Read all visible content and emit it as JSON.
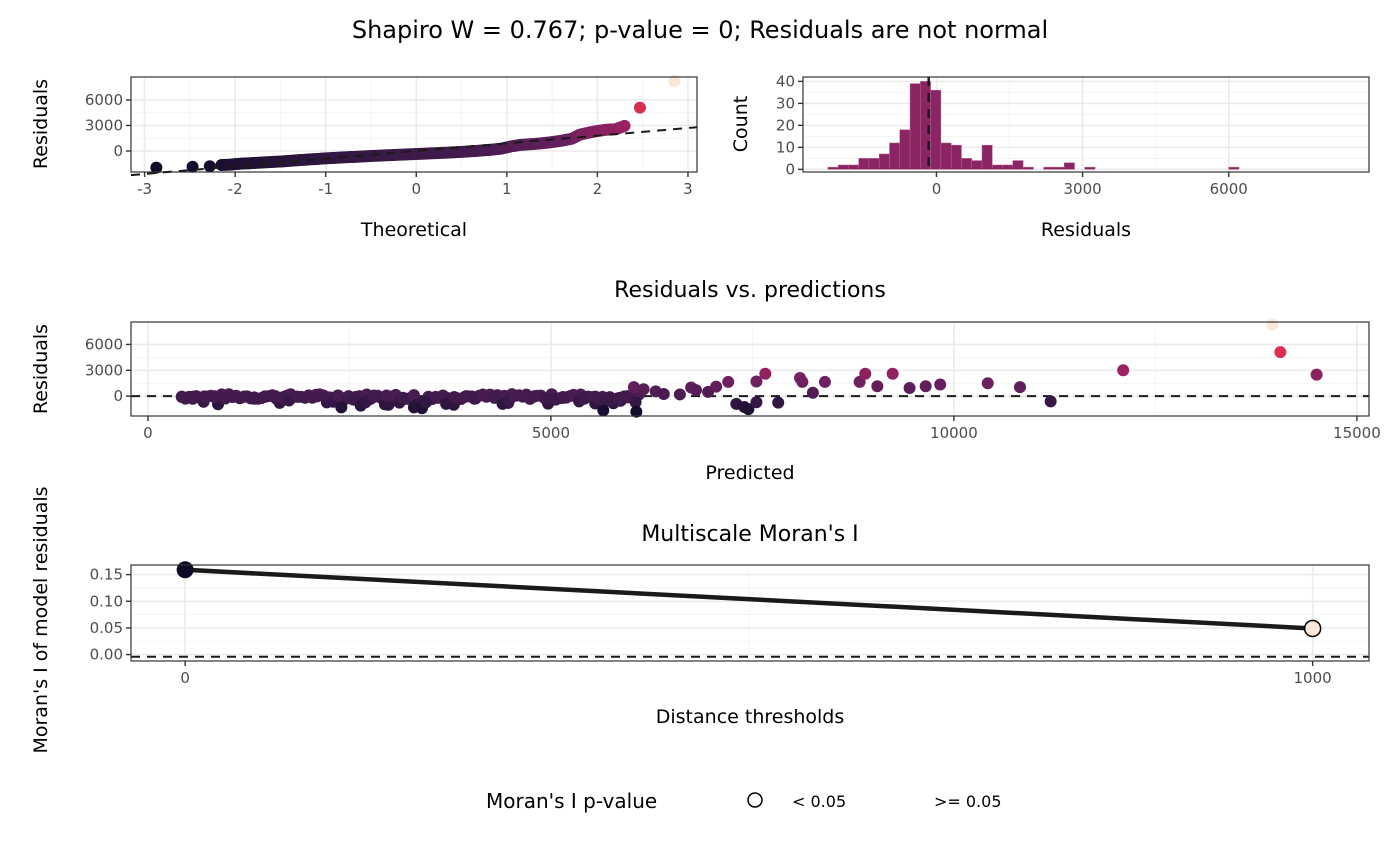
{
  "figure_title": "Shapiro W = 0.767; p-value = 0; Residuals are not normal",
  "colors": {
    "dark": "#0b0924",
    "purple": "#4a1f55",
    "magenta": "#8b2463",
    "crimson": "#cc1a56",
    "orange": "#f26a47",
    "peach": "#fbe8d8",
    "hist_fill": "#8b2463",
    "line": "#1a1a1a",
    "grid": "#ebebeb"
  },
  "chart_data": [
    {
      "id": "qq",
      "type": "scatter",
      "title": "",
      "xlabel": "Theoretical",
      "ylabel": "Residuals",
      "xlim": [
        -3.15,
        3.1
      ],
      "ylim": [
        -2470,
        8700
      ],
      "xticks": [
        "-3",
        "-2",
        "-1",
        "0",
        "1",
        "2",
        "3"
      ],
      "xtick_values": [
        -3,
        -2,
        -1,
        0,
        1,
        2,
        3
      ],
      "yticks": [
        "0",
        "3000",
        "6000"
      ],
      "ytick_values": [
        0,
        3000,
        6000
      ],
      "reference_line": {
        "slope": 900,
        "intercept": 0,
        "style": "dashed"
      },
      "grid": true,
      "points": [
        {
          "x": -2.87,
          "y": -1950
        },
        {
          "x": -2.47,
          "y": -1850
        },
        {
          "x": -2.28,
          "y": -1800
        },
        {
          "x": -2.15,
          "y": -1650
        },
        {
          "x": -2.05,
          "y": -1600
        },
        {
          "x": -1.95,
          "y": -1500
        },
        {
          "x": -1.85,
          "y": -1450
        },
        {
          "x": -1.75,
          "y": -1380
        },
        {
          "x": -1.6,
          "y": -1300
        },
        {
          "x": -1.45,
          "y": -1200
        },
        {
          "x": -1.3,
          "y": -1080
        },
        {
          "x": -1.15,
          "y": -970
        },
        {
          "x": -1.0,
          "y": -870
        },
        {
          "x": -0.85,
          "y": -780
        },
        {
          "x": -0.7,
          "y": -700
        },
        {
          "x": -0.55,
          "y": -620
        },
        {
          "x": -0.4,
          "y": -540
        },
        {
          "x": -0.25,
          "y": -470
        },
        {
          "x": -0.1,
          "y": -400
        },
        {
          "x": 0.05,
          "y": -330
        },
        {
          "x": 0.2,
          "y": -260
        },
        {
          "x": 0.35,
          "y": -190
        },
        {
          "x": 0.5,
          "y": -110
        },
        {
          "x": 0.65,
          "y": 0
        },
        {
          "x": 0.8,
          "y": 120
        },
        {
          "x": 0.95,
          "y": 300
        },
        {
          "x": 1.05,
          "y": 550
        },
        {
          "x": 1.15,
          "y": 720
        },
        {
          "x": 1.3,
          "y": 820
        },
        {
          "x": 1.45,
          "y": 980
        },
        {
          "x": 1.6,
          "y": 1200
        },
        {
          "x": 1.72,
          "y": 1450
        },
        {
          "x": 1.8,
          "y": 1900
        },
        {
          "x": 1.9,
          "y": 2150
        },
        {
          "x": 2.0,
          "y": 2350
        },
        {
          "x": 2.1,
          "y": 2500
        },
        {
          "x": 2.2,
          "y": 2550
        },
        {
          "x": 2.3,
          "y": 2950
        },
        {
          "x": 2.47,
          "y": 5100
        },
        {
          "x": 2.85,
          "y": 8250
        }
      ]
    },
    {
      "id": "hist",
      "type": "bar",
      "title": "",
      "xlabel": "Residuals",
      "ylabel": "Count",
      "xlim": [
        -2740,
        8880
      ],
      "ylim": [
        -1.2,
        42
      ],
      "xticks": [
        "0",
        "3000",
        "6000"
      ],
      "xtick_values": [
        0,
        3000,
        6000
      ],
      "yticks": [
        "0",
        "10",
        "20",
        "30",
        "40"
      ],
      "ytick_values": [
        0,
        10,
        20,
        30,
        40
      ],
      "bin_start": -2230,
      "bin_width": 211,
      "counts": [
        1,
        2,
        2,
        5,
        5,
        7,
        12,
        18,
        39,
        40,
        36,
        12,
        11,
        5,
        4,
        11,
        2,
        2,
        4,
        1,
        0,
        1,
        1,
        3,
        0,
        1,
        0,
        0,
        0,
        0,
        0,
        0,
        0,
        0,
        0,
        0,
        0,
        0,
        0,
        1,
        0,
        0,
        0,
        0,
        0,
        0,
        0,
        0,
        0,
        0,
        0,
        0,
        0,
        0,
        0,
        0,
        0,
        0,
        0,
        0,
        0,
        0,
        0,
        0,
        0,
        0,
        0,
        0,
        0,
        0,
        0,
        0,
        0,
        0,
        0,
        0,
        0,
        0,
        0,
        0,
        0,
        0,
        0,
        0,
        0,
        0,
        0,
        0,
        0,
        0,
        0,
        0,
        0,
        0,
        1
      ],
      "vline": {
        "x": -160,
        "style": "dashed"
      },
      "grid": true
    },
    {
      "id": "resid_pred",
      "type": "scatter",
      "title": "Residuals vs. predictions",
      "xlabel": "Predicted",
      "ylabel": "Residuals",
      "xlim": [
        -210,
        15150
      ],
      "ylim": [
        -2300,
        8600
      ],
      "xticks": [
        "0",
        "5000",
        "10000",
        "15000"
      ],
      "xtick_values": [
        0,
        5000,
        10000,
        15000
      ],
      "yticks": [
        "0",
        "3000",
        "6000"
      ],
      "ytick_values": [
        0,
        3000,
        6000
      ],
      "hline": {
        "y": 0,
        "style": "dashed"
      },
      "grid": true,
      "points": [
        {
          "x": 420,
          "y": -100
        },
        {
          "x": 560,
          "y": -50
        },
        {
          "x": 700,
          "y": -20
        },
        {
          "x": 820,
          "y": -80
        },
        {
          "x": 950,
          "y": -60
        },
        {
          "x": 1080,
          "y": 0
        },
        {
          "x": 1200,
          "y": -40
        },
        {
          "x": 1320,
          "y": -300
        },
        {
          "x": 1450,
          "y": -20
        },
        {
          "x": 1580,
          "y": 0
        },
        {
          "x": 1680,
          "y": -100
        },
        {
          "x": 1750,
          "y": -500
        },
        {
          "x": 1850,
          "y": -60
        },
        {
          "x": 1980,
          "y": -50
        },
        {
          "x": 2100,
          "y": -30
        },
        {
          "x": 2230,
          "y": -120
        },
        {
          "x": 2300,
          "y": -650
        },
        {
          "x": 2360,
          "y": 80
        },
        {
          "x": 2480,
          "y": -200
        },
        {
          "x": 2550,
          "y": -400
        },
        {
          "x": 2640,
          "y": -1100
        },
        {
          "x": 2700,
          "y": -700
        },
        {
          "x": 2800,
          "y": -100
        },
        {
          "x": 2960,
          "y": 80
        },
        {
          "x": 2400,
          "y": -1300
        },
        {
          "x": 3300,
          "y": -1300
        },
        {
          "x": 3400,
          "y": -1400
        },
        {
          "x": 3450,
          "y": -700
        },
        {
          "x": 3600,
          "y": -200
        },
        {
          "x": 3700,
          "y": -900
        },
        {
          "x": 3800,
          "y": -100
        },
        {
          "x": 3950,
          "y": 0
        },
        {
          "x": 4050,
          "y": -300
        },
        {
          "x": 4150,
          "y": 100
        },
        {
          "x": 4300,
          "y": -200
        },
        {
          "x": 4400,
          "y": -900
        },
        {
          "x": 4480,
          "y": -500
        },
        {
          "x": 4550,
          "y": 80
        },
        {
          "x": 4700,
          "y": -50
        },
        {
          "x": 4800,
          "y": 0
        },
        {
          "x": 4950,
          "y": -300
        },
        {
          "x": 5060,
          "y": -400
        },
        {
          "x": 5150,
          "y": -100
        },
        {
          "x": 5280,
          "y": 100
        },
        {
          "x": 5350,
          "y": -600
        },
        {
          "x": 5400,
          "y": -300
        },
        {
          "x": 5550,
          "y": -50
        },
        {
          "x": 5650,
          "y": -1650
        },
        {
          "x": 5730,
          "y": -400
        },
        {
          "x": 5850,
          "y": -200
        },
        {
          "x": 5950,
          "y": 0
        },
        {
          "x": 6030,
          "y": 1050
        },
        {
          "x": 6050,
          "y": -700
        },
        {
          "x": 6060,
          "y": -1800
        },
        {
          "x": 6150,
          "y": 800
        },
        {
          "x": 6300,
          "y": 550
        },
        {
          "x": 6400,
          "y": 250
        },
        {
          "x": 6600,
          "y": 200
        },
        {
          "x": 6740,
          "y": 1000
        },
        {
          "x": 6800,
          "y": 700
        },
        {
          "x": 6950,
          "y": 500
        },
        {
          "x": 7050,
          "y": 1100
        },
        {
          "x": 7200,
          "y": 1650
        },
        {
          "x": 7300,
          "y": -900
        },
        {
          "x": 7400,
          "y": -1250
        },
        {
          "x": 7450,
          "y": -1500
        },
        {
          "x": 7550,
          "y": 1700
        },
        {
          "x": 7660,
          "y": 2600
        },
        {
          "x": 7550,
          "y": -700
        },
        {
          "x": 7820,
          "y": -750
        },
        {
          "x": 8090,
          "y": 2100
        },
        {
          "x": 8120,
          "y": 1650
        },
        {
          "x": 8250,
          "y": 400
        },
        {
          "x": 8400,
          "y": 1650
        },
        {
          "x": 8830,
          "y": 1650
        },
        {
          "x": 8900,
          "y": 2600
        },
        {
          "x": 9050,
          "y": 1150
        },
        {
          "x": 9240,
          "y": 2600
        },
        {
          "x": 9450,
          "y": 950
        },
        {
          "x": 9650,
          "y": 1150
        },
        {
          "x": 9830,
          "y": 1350
        },
        {
          "x": 10420,
          "y": 1500
        },
        {
          "x": 10820,
          "y": 1050
        },
        {
          "x": 11200,
          "y": -600
        },
        {
          "x": 12100,
          "y": 3000
        },
        {
          "x": 13950,
          "y": 8300
        },
        {
          "x": 14050,
          "y": 5100
        },
        {
          "x": 14500,
          "y": 2500
        }
      ]
    },
    {
      "id": "moran",
      "type": "line",
      "title": "Multiscale Moran's I",
      "xlabel": "Distance thresholds",
      "ylabel": "Moran's I of model residuals",
      "xlim": [
        -48,
        1050
      ],
      "ylim": [
        -0.012,
        0.168
      ],
      "xticks": [
        "0",
        "1000"
      ],
      "xtick_values": [
        0,
        1000
      ],
      "yticks": [
        "0.00",
        "0.05",
        "0.10",
        "0.15"
      ],
      "ytick_values": [
        0,
        0.05,
        0.1,
        0.15
      ],
      "hline": {
        "y": -0.004,
        "style": "dashed"
      },
      "grid": true,
      "points": [
        {
          "x": 0,
          "y": 0.159,
          "p_value_group": ">= 0.05"
        },
        {
          "x": 1000,
          "y": 0.049,
          "p_value_group": "< 0.05"
        }
      ]
    }
  ],
  "legend": {
    "title": "Moran's I p-value",
    "position": "bottom",
    "items": [
      {
        "label": "< 0.05",
        "symbol": "open-circle"
      },
      {
        "label": ">= 0.05",
        "symbol": "none"
      }
    ]
  }
}
